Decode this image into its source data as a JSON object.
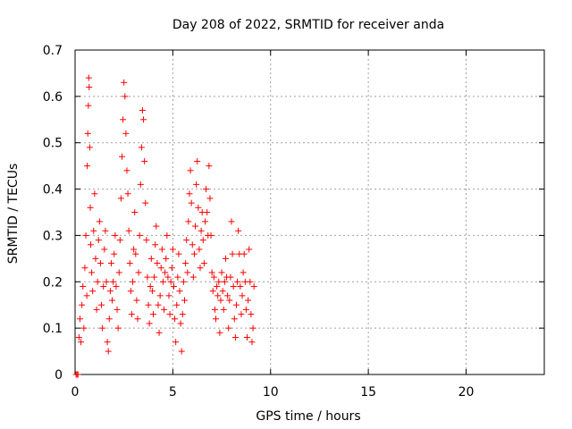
{
  "chart_data": {
    "type": "scatter",
    "title": "Day 208 of 2022, SRMTID for receiver anda",
    "xlabel": "GPS time / hours",
    "ylabel": "SRMTID / TECUs",
    "xlim": [
      0,
      24
    ],
    "ylim": [
      0,
      0.7
    ],
    "xticks": [
      0,
      5,
      10,
      15,
      20
    ],
    "xtick_labels": [
      "0",
      "5",
      "10",
      "15",
      "20"
    ],
    "yticks": [
      0,
      0.1,
      0.2,
      0.3,
      0.4,
      0.5,
      0.6,
      0.7
    ],
    "ytick_labels": [
      "0",
      "0.1",
      "0.2",
      "0.3",
      "0.4",
      "0.5",
      "0.6",
      "0.7"
    ],
    "grid": true,
    "marker": "+",
    "marker_color": "#ff0000",
    "x_data_range": [
      0.0,
      9.2
    ],
    "series": [
      {
        "name": "SRMTID",
        "points": [
          [
            0.05,
            0.0
          ],
          [
            0.1,
            0.0
          ],
          [
            0.15,
            0.0
          ],
          [
            0.2,
            0.08
          ],
          [
            0.25,
            0.12
          ],
          [
            0.3,
            0.07
          ],
          [
            0.35,
            0.15
          ],
          [
            0.4,
            0.19
          ],
          [
            0.45,
            0.1
          ],
          [
            0.5,
            0.23
          ],
          [
            0.55,
            0.3
          ],
          [
            0.6,
            0.17
          ],
          [
            0.62,
            0.45
          ],
          [
            0.65,
            0.52
          ],
          [
            0.68,
            0.58
          ],
          [
            0.7,
            0.64
          ],
          [
            0.72,
            0.62
          ],
          [
            0.75,
            0.49
          ],
          [
            0.78,
            0.36
          ],
          [
            0.8,
            0.28
          ],
          [
            0.85,
            0.22
          ],
          [
            0.9,
            0.18
          ],
          [
            0.95,
            0.31
          ],
          [
            1.0,
            0.39
          ],
          [
            1.05,
            0.25
          ],
          [
            1.1,
            0.14
          ],
          [
            1.15,
            0.2
          ],
          [
            1.2,
            0.29
          ],
          [
            1.25,
            0.33
          ],
          [
            1.3,
            0.24
          ],
          [
            1.35,
            0.15
          ],
          [
            1.4,
            0.1
          ],
          [
            1.45,
            0.19
          ],
          [
            1.5,
            0.27
          ],
          [
            1.55,
            0.31
          ],
          [
            1.6,
            0.2
          ],
          [
            1.65,
            0.07
          ],
          [
            1.7,
            0.05
          ],
          [
            1.75,
            0.12
          ],
          [
            1.8,
            0.18
          ],
          [
            1.85,
            0.24
          ],
          [
            1.9,
            0.16
          ],
          [
            1.95,
            0.2
          ],
          [
            2.0,
            0.26
          ],
          [
            2.05,
            0.3
          ],
          [
            2.1,
            0.19
          ],
          [
            2.15,
            0.14
          ],
          [
            2.2,
            0.1
          ],
          [
            2.25,
            0.22
          ],
          [
            2.3,
            0.29
          ],
          [
            2.35,
            0.38
          ],
          [
            2.4,
            0.47
          ],
          [
            2.45,
            0.55
          ],
          [
            2.5,
            0.63
          ],
          [
            2.55,
            0.6
          ],
          [
            2.6,
            0.52
          ],
          [
            2.65,
            0.44
          ],
          [
            2.7,
            0.39
          ],
          [
            2.75,
            0.31
          ],
          [
            2.8,
            0.24
          ],
          [
            2.85,
            0.18
          ],
          [
            2.9,
            0.13
          ],
          [
            2.95,
            0.2
          ],
          [
            3.0,
            0.27
          ],
          [
            3.05,
            0.35
          ],
          [
            3.1,
            0.26
          ],
          [
            3.15,
            0.16
          ],
          [
            3.2,
            0.12
          ],
          [
            3.25,
            0.22
          ],
          [
            3.3,
            0.3
          ],
          [
            3.35,
            0.41
          ],
          [
            3.4,
            0.49
          ],
          [
            3.45,
            0.57
          ],
          [
            3.5,
            0.55
          ],
          [
            3.55,
            0.46
          ],
          [
            3.6,
            0.37
          ],
          [
            3.65,
            0.29
          ],
          [
            3.7,
            0.21
          ],
          [
            3.75,
            0.15
          ],
          [
            3.8,
            0.11
          ],
          [
            3.85,
            0.19
          ],
          [
            3.9,
            0.25
          ],
          [
            3.95,
            0.18
          ],
          [
            4.0,
            0.13
          ],
          [
            4.05,
            0.21
          ],
          [
            4.1,
            0.28
          ],
          [
            4.15,
            0.32
          ],
          [
            4.2,
            0.24
          ],
          [
            4.25,
            0.15
          ],
          [
            4.3,
            0.09
          ],
          [
            4.35,
            0.17
          ],
          [
            4.4,
            0.23
          ],
          [
            4.45,
            0.27
          ],
          [
            4.5,
            0.2
          ],
          [
            4.55,
            0.14
          ],
          [
            4.6,
            0.22
          ],
          [
            4.65,
            0.25
          ],
          [
            4.7,
            0.3
          ],
          [
            4.75,
            0.21
          ],
          [
            4.8,
            0.17
          ],
          [
            4.85,
            0.13
          ],
          [
            4.9,
            0.2
          ],
          [
            4.95,
            0.23
          ],
          [
            5.0,
            0.27
          ],
          [
            5.05,
            0.19
          ],
          [
            5.1,
            0.12
          ],
          [
            5.15,
            0.07
          ],
          [
            5.2,
            0.15
          ],
          [
            5.25,
            0.21
          ],
          [
            5.3,
            0.26
          ],
          [
            5.35,
            0.18
          ],
          [
            5.4,
            0.11
          ],
          [
            5.45,
            0.05
          ],
          [
            5.5,
            0.13
          ],
          [
            5.55,
            0.2
          ],
          [
            5.6,
            0.16
          ],
          [
            5.65,
            0.24
          ],
          [
            5.7,
            0.29
          ],
          [
            5.75,
            0.22
          ],
          [
            5.8,
            0.33
          ],
          [
            5.85,
            0.39
          ],
          [
            5.9,
            0.44
          ],
          [
            5.95,
            0.37
          ],
          [
            6.0,
            0.28
          ],
          [
            6.05,
            0.21
          ],
          [
            6.1,
            0.26
          ],
          [
            6.15,
            0.32
          ],
          [
            6.2,
            0.41
          ],
          [
            6.25,
            0.46
          ],
          [
            6.3,
            0.36
          ],
          [
            6.35,
            0.27
          ],
          [
            6.4,
            0.23
          ],
          [
            6.45,
            0.31
          ],
          [
            6.5,
            0.35
          ],
          [
            6.55,
            0.29
          ],
          [
            6.6,
            0.24
          ],
          [
            6.65,
            0.33
          ],
          [
            6.7,
            0.4
          ],
          [
            6.75,
            0.35
          ],
          [
            6.8,
            0.3
          ],
          [
            6.85,
            0.45
          ],
          [
            6.9,
            0.38
          ],
          [
            6.95,
            0.3
          ],
          [
            7.0,
            0.22
          ],
          [
            7.05,
            0.18
          ],
          [
            7.1,
            0.21
          ],
          [
            7.15,
            0.14
          ],
          [
            7.2,
            0.12
          ],
          [
            7.25,
            0.19
          ],
          [
            7.3,
            0.17
          ],
          [
            7.35,
            0.2
          ],
          [
            7.4,
            0.09
          ],
          [
            7.45,
            0.16
          ],
          [
            7.5,
            0.22
          ],
          [
            7.55,
            0.18
          ],
          [
            7.6,
            0.14
          ],
          [
            7.65,
            0.2
          ],
          [
            7.7,
            0.25
          ],
          [
            7.75,
            0.21
          ],
          [
            7.8,
            0.17
          ],
          [
            7.85,
            0.1
          ],
          [
            7.9,
            0.16
          ],
          [
            7.95,
            0.21
          ],
          [
            8.0,
            0.33
          ],
          [
            8.05,
            0.26
          ],
          [
            8.1,
            0.19
          ],
          [
            8.15,
            0.12
          ],
          [
            8.2,
            0.08
          ],
          [
            8.25,
            0.15
          ],
          [
            8.3,
            0.2
          ],
          [
            8.35,
            0.31
          ],
          [
            8.4,
            0.26
          ],
          [
            8.45,
            0.19
          ],
          [
            8.5,
            0.13
          ],
          [
            8.55,
            0.17
          ],
          [
            8.6,
            0.22
          ],
          [
            8.65,
            0.26
          ],
          [
            8.7,
            0.2
          ],
          [
            8.75,
            0.14
          ],
          [
            8.8,
            0.08
          ],
          [
            8.85,
            0.16
          ],
          [
            8.9,
            0.27
          ],
          [
            8.95,
            0.2
          ],
          [
            9.0,
            0.13
          ],
          [
            9.05,
            0.07
          ],
          [
            9.1,
            0.1
          ],
          [
            9.15,
            0.19
          ]
        ]
      }
    ]
  }
}
